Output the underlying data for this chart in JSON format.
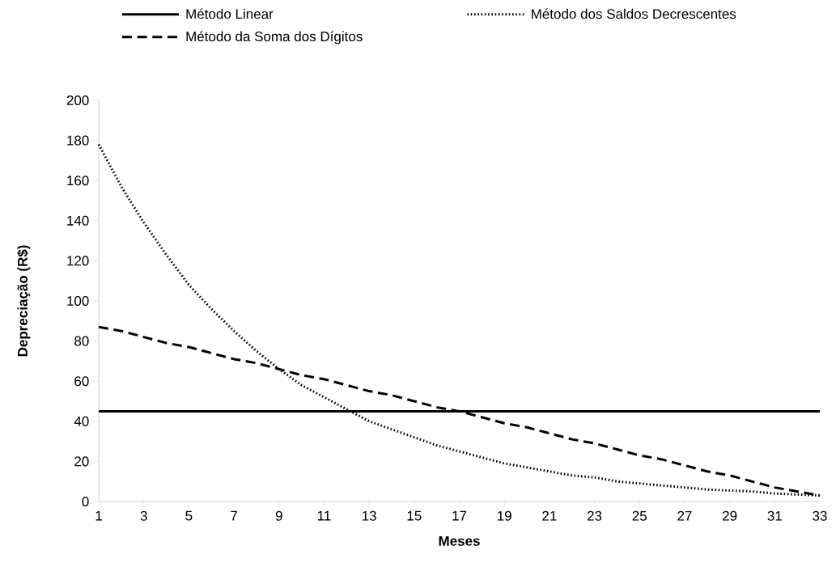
{
  "chart_data": {
    "type": "line",
    "xlabel": "Meses",
    "ylabel": "Depreciação (R$)",
    "x": [
      1,
      2,
      3,
      4,
      5,
      6,
      7,
      8,
      9,
      10,
      11,
      12,
      13,
      14,
      15,
      16,
      17,
      18,
      19,
      20,
      21,
      22,
      23,
      24,
      25,
      26,
      27,
      28,
      29,
      30,
      31,
      32,
      33
    ],
    "xlim": [
      1,
      33
    ],
    "xticks": [
      1,
      3,
      5,
      7,
      9,
      11,
      13,
      15,
      17,
      19,
      21,
      23,
      25,
      27,
      29,
      31,
      33
    ],
    "ylim": [
      0,
      200
    ],
    "yticks": [
      0,
      20,
      40,
      60,
      80,
      100,
      120,
      140,
      160,
      180,
      200
    ],
    "grid": false,
    "legend": "top",
    "marker": "none",
    "series": [
      {
        "name": "Método Linear",
        "color": "#000000",
        "line_style": "solid",
        "values": [
          45,
          45,
          45,
          45,
          45,
          45,
          45,
          45,
          45,
          45,
          45,
          45,
          45,
          45,
          45,
          45,
          45,
          45,
          45,
          45,
          45,
          45,
          45,
          45,
          45,
          45,
          45,
          45,
          45,
          45,
          45,
          45,
          45
        ]
      },
      {
        "name": "Método dos Saldos Decrescentes",
        "color": "#000000",
        "line_style": "dotted",
        "values": [
          178,
          157,
          139,
          123,
          108,
          96,
          85,
          75,
          66,
          58,
          52,
          46,
          40,
          36,
          32,
          28,
          25,
          22,
          19,
          17,
          15,
          13,
          12,
          10,
          9,
          8,
          7,
          6,
          5.5,
          5,
          4,
          3.5,
          3
        ]
      },
      {
        "name": "Método da Soma dos Dígitos",
        "color": "#000000",
        "line_style": "dashed",
        "values": [
          87,
          85,
          82,
          79,
          77,
          74,
          71,
          69,
          66,
          63,
          61,
          58,
          55,
          53,
          50,
          47,
          45,
          42,
          39,
          37,
          34,
          31,
          29,
          26,
          23,
          21,
          18,
          15,
          13,
          10,
          7,
          5,
          3
        ]
      }
    ]
  }
}
